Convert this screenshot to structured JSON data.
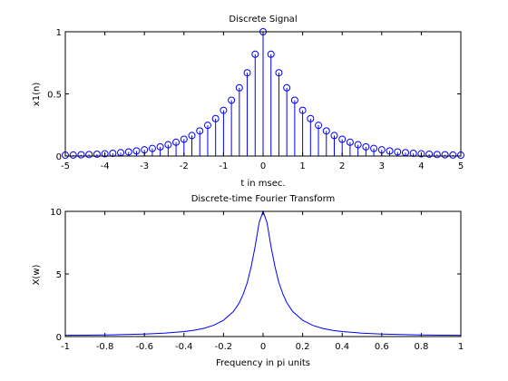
{
  "colors": {
    "series": "#0000ff",
    "axes": "#000000",
    "background": "#ffffff"
  },
  "chart_data": [
    {
      "type": "stem",
      "title": "Discrete Signal",
      "xlabel": "t in msec.",
      "ylabel": "x1(n)",
      "xlim": [
        -5,
        5
      ],
      "ylim": [
        0,
        1
      ],
      "xticks": [
        "-5",
        "-4",
        "-3",
        "-2",
        "-1",
        "0",
        "1",
        "2",
        "3",
        "4",
        "5"
      ],
      "yticks": [
        "0",
        "0.5",
        "1"
      ],
      "grid": false,
      "marker": "circle",
      "x": [
        -5,
        -4.8,
        -4.6,
        -4.4,
        -4.2,
        -4,
        -3.8,
        -3.6,
        -3.4,
        -3.2,
        -3,
        -2.8,
        -2.6,
        -2.4,
        -2.2,
        -2,
        -1.8,
        -1.6,
        -1.4,
        -1.2,
        -1,
        -0.8,
        -0.6,
        -0.4,
        -0.2,
        0,
        0.2,
        0.4,
        0.6,
        0.8,
        1,
        1.2,
        1.4,
        1.6,
        1.8,
        2,
        2.2,
        2.4,
        2.6,
        2.8,
        3,
        3.2,
        3.4,
        3.6,
        3.8,
        4,
        4.2,
        4.4,
        4.6,
        4.8,
        5
      ],
      "y": [
        0.007,
        0.008,
        0.01,
        0.012,
        0.015,
        0.018,
        0.022,
        0.027,
        0.033,
        0.041,
        0.05,
        0.061,
        0.074,
        0.091,
        0.111,
        0.135,
        0.165,
        0.202,
        0.247,
        0.301,
        0.368,
        0.449,
        0.549,
        0.67,
        0.819,
        1,
        0.819,
        0.67,
        0.549,
        0.449,
        0.368,
        0.301,
        0.247,
        0.202,
        0.165,
        0.135,
        0.111,
        0.091,
        0.074,
        0.061,
        0.05,
        0.041,
        0.033,
        0.027,
        0.022,
        0.018,
        0.015,
        0.012,
        0.01,
        0.008,
        0.007
      ]
    },
    {
      "type": "line",
      "title": "Discrete-time Fourier Transform",
      "xlabel": "Frequency in pi units",
      "ylabel": "X(w)",
      "xlim": [
        -1,
        1
      ],
      "ylim": [
        0,
        10
      ],
      "xticks": [
        "-1",
        "-0.8",
        "-0.6",
        "-0.4",
        "-0.2",
        "0",
        "0.2",
        "0.4",
        "0.6",
        "0.8",
        "1"
      ],
      "yticks": [
        "0",
        "5",
        "10"
      ],
      "grid": false,
      "x": [
        -1,
        -0.9,
        -0.8,
        -0.7,
        -0.6,
        -0.5,
        -0.4,
        -0.35,
        -0.3,
        -0.25,
        -0.2,
        -0.15,
        -0.12,
        -0.1,
        -0.08,
        -0.06,
        -0.04,
        -0.02,
        0,
        0.02,
        0.04,
        0.06,
        0.08,
        0.1,
        0.12,
        0.15,
        0.2,
        0.25,
        0.3,
        0.35,
        0.4,
        0.5,
        0.6,
        0.7,
        0.8,
        0.9,
        1
      ],
      "y": [
        0.1,
        0.11,
        0.13,
        0.16,
        0.2,
        0.27,
        0.4,
        0.5,
        0.65,
        0.9,
        1.3,
        2.0,
        2.7,
        3.4,
        4.3,
        5.6,
        7.2,
        9.1,
        10,
        9.1,
        7.2,
        5.6,
        4.3,
        3.4,
        2.7,
        2.0,
        1.3,
        0.9,
        0.65,
        0.5,
        0.4,
        0.27,
        0.2,
        0.16,
        0.13,
        0.11,
        0.1
      ]
    }
  ]
}
